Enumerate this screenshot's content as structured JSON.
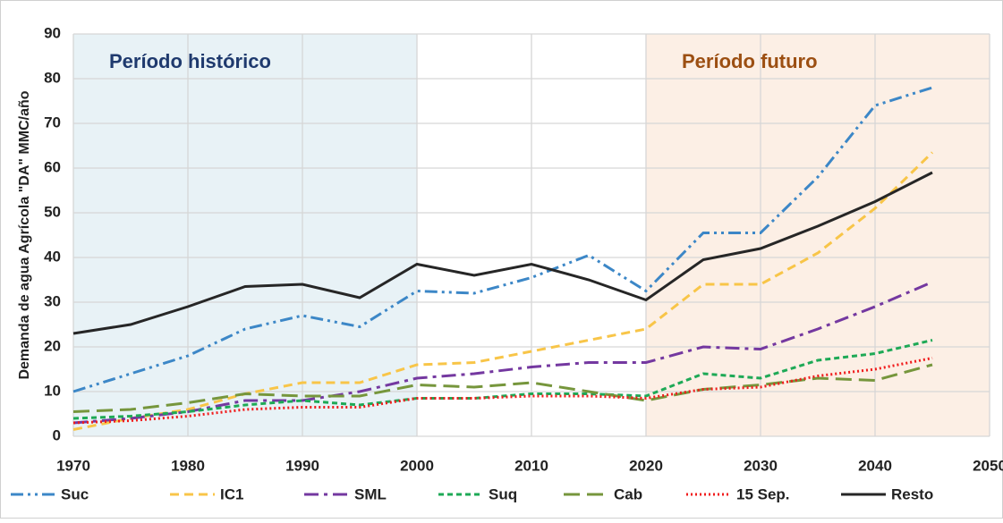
{
  "chart_data": {
    "type": "line",
    "ylabel": "Demanda de agua Agrícola \"DA\" MMC/año",
    "x": [
      1970,
      1975,
      1980,
      1985,
      1990,
      1995,
      2000,
      2005,
      2010,
      2015,
      2020,
      2025,
      2030,
      2035,
      2040,
      2045
    ],
    "xlim": [
      1970,
      2050
    ],
    "xticks": [
      1970,
      1980,
      1990,
      2000,
      2010,
      2020,
      2030,
      2040,
      2050
    ],
    "ylim": [
      0,
      90
    ],
    "yticks": [
      0,
      10,
      20,
      30,
      40,
      50,
      60,
      70,
      80,
      90
    ],
    "grid": true,
    "legend": "bottom",
    "regions": [
      {
        "label": "Período histórico",
        "xlim": [
          1970,
          2000
        ],
        "color": "#e8f2f6",
        "text_color": "#1f3a6e"
      },
      {
        "label": "Período futuro",
        "xlim": [
          2020,
          2050
        ],
        "color": "#fcefe5",
        "text_color": "#9c4f12"
      }
    ],
    "series": [
      {
        "name": "Suc",
        "color": "#3c87c7",
        "line_style": "dash-dot-dot",
        "values": [
          10,
          14,
          18,
          24,
          27,
          24.5,
          32.5,
          32,
          35.5,
          40.5,
          32.5,
          45.5,
          45.5,
          58,
          74,
          78
        ]
      },
      {
        "name": "IC1",
        "color": "#f8c548",
        "line_style": "dashed",
        "values": [
          1.5,
          4,
          6,
          9.5,
          12,
          12,
          16,
          16.5,
          19,
          21.5,
          24,
          34,
          34,
          41,
          51,
          63.5
        ]
      },
      {
        "name": "SML",
        "color": "#7438a0",
        "line_style": "dash-dot",
        "values": [
          3,
          4,
          5.5,
          8,
          8,
          10,
          13,
          14,
          15.5,
          16.5,
          16.5,
          20,
          19.5,
          24,
          29,
          34.5
        ]
      },
      {
        "name": "Suq",
        "color": "#1ea956",
        "line_style": "short-dashed",
        "values": [
          4,
          4.5,
          5.5,
          7,
          8,
          7,
          8.5,
          8.5,
          9.5,
          9.5,
          9,
          14,
          13,
          17,
          18.5,
          21.5
        ]
      },
      {
        "name": "Cab",
        "color": "#76963c",
        "line_style": "long-dashed",
        "values": [
          5.5,
          6,
          7.5,
          9.5,
          9,
          9,
          11.5,
          11,
          12,
          10,
          8,
          10.5,
          11.5,
          13,
          12.5,
          16
        ]
      },
      {
        "name": "15 Sep.",
        "color": "#f01c1c",
        "line_style": "dotted",
        "values": [
          3,
          3.5,
          4.5,
          6,
          6.5,
          6.5,
          8.5,
          8.5,
          9,
          9,
          8.5,
          10.5,
          11,
          13.5,
          15,
          17.5
        ]
      },
      {
        "name": "Resto",
        "color": "#262626",
        "line_style": "solid",
        "values": [
          23,
          25,
          29,
          33.5,
          34,
          31,
          38.5,
          36,
          38.5,
          35,
          30.5,
          39.5,
          42,
          47,
          52.5,
          59
        ]
      }
    ]
  }
}
